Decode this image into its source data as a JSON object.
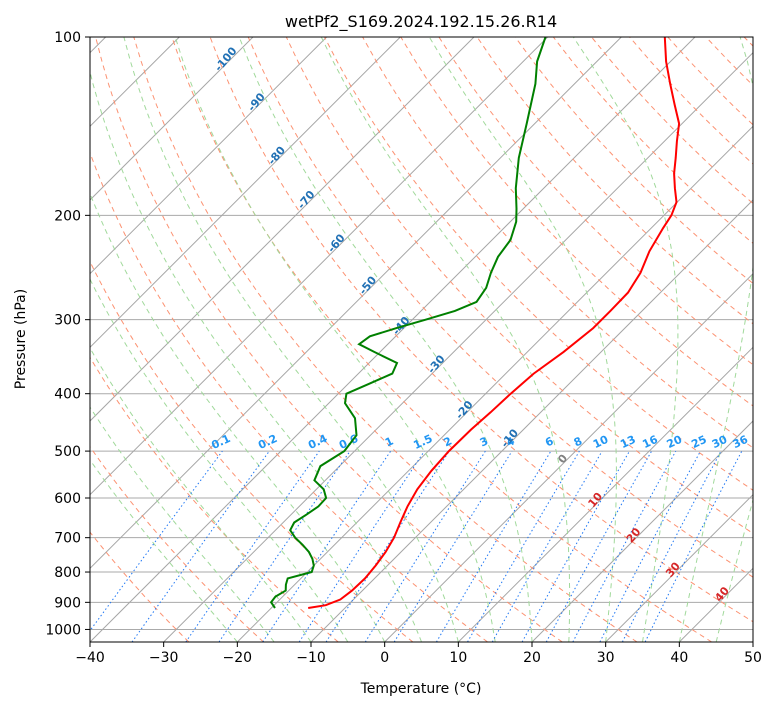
{
  "chart_data": {
    "type": "line",
    "title": "wetPf2_S169.2024.192.15.26.R14",
    "xlabel": "Temperature (°C)",
    "ylabel": "Pressure (hPa)",
    "xlim": [
      -40,
      50
    ],
    "ylim": [
      1050,
      100
    ],
    "y_scale": "log",
    "grid": true,
    "x_ticks": [
      "−40",
      "−30",
      "−20",
      "−10",
      "0",
      "10",
      "20",
      "30",
      "40",
      "50"
    ],
    "x_tick_values": [
      -40,
      -30,
      -20,
      -10,
      0,
      10,
      20,
      30,
      40,
      50
    ],
    "y_ticks": [
      "100",
      "200",
      "300",
      "400",
      "500",
      "600",
      "700",
      "800",
      "900",
      "1000"
    ],
    "y_tick_values": [
      100,
      200,
      300,
      400,
      500,
      600,
      700,
      800,
      900,
      1000
    ],
    "series": [
      {
        "color": "#ff0000",
        "points": [
          [
            920,
            -15
          ],
          [
            910,
            -13
          ],
          [
            890,
            -11.8
          ],
          [
            860,
            -11.4
          ],
          [
            820,
            -11.3
          ],
          [
            780,
            -11.6
          ],
          [
            740,
            -12.1
          ],
          [
            700,
            -12.9
          ],
          [
            660,
            -14.1
          ],
          [
            620,
            -15.3
          ],
          [
            580,
            -16.3
          ],
          [
            540,
            -16.9
          ],
          [
            500,
            -17.2
          ],
          [
            460,
            -17.1
          ],
          [
            430,
            -16.8
          ],
          [
            400,
            -16.6
          ],
          [
            370,
            -16.2
          ],
          [
            340,
            -15.1
          ],
          [
            310,
            -14.3
          ],
          [
            290,
            -14.3
          ],
          [
            270,
            -14.4
          ],
          [
            250,
            -15.4
          ],
          [
            230,
            -17.1
          ],
          [
            210,
            -18.4
          ],
          [
            200,
            -19.0
          ],
          [
            190,
            -20.1
          ],
          [
            180,
            -22.2
          ],
          [
            170,
            -24.3
          ],
          [
            160,
            -26.2
          ],
          [
            150,
            -28.3
          ],
          [
            140,
            -30.4
          ],
          [
            130,
            -33.6
          ],
          [
            120,
            -37.0
          ],
          [
            110,
            -40.6
          ],
          [
            100,
            -44.1
          ]
        ]
      },
      {
        "color": "#008000",
        "points": [
          [
            920,
            -19.5
          ],
          [
            900,
            -20.8
          ],
          [
            880,
            -21
          ],
          [
            860,
            -20.4
          ],
          [
            840,
            -21.2
          ],
          [
            820,
            -21.8
          ],
          [
            800,
            -19.4
          ],
          [
            780,
            -20
          ],
          [
            760,
            -21.1
          ],
          [
            740,
            -22.5
          ],
          [
            720,
            -24.3
          ],
          [
            700,
            -26.3
          ],
          [
            680,
            -28
          ],
          [
            660,
            -28.5
          ],
          [
            640,
            -27.9
          ],
          [
            620,
            -27.4
          ],
          [
            600,
            -27.5
          ],
          [
            580,
            -29
          ],
          [
            560,
            -31.5
          ],
          [
            530,
            -32.6
          ],
          [
            500,
            -31.4
          ],
          [
            470,
            -31.9
          ],
          [
            440,
            -34.4
          ],
          [
            415,
            -37.8
          ],
          [
            400,
            -38.9
          ],
          [
            385,
            -37.2
          ],
          [
            370,
            -35.4
          ],
          [
            355,
            -36.2
          ],
          [
            340,
            -40.8
          ],
          [
            330,
            -43.9
          ],
          [
            320,
            -43.5
          ],
          [
            310,
            -41
          ],
          [
            300,
            -38.2
          ],
          [
            290,
            -35.4
          ],
          [
            280,
            -33.7
          ],
          [
            265,
            -34.3
          ],
          [
            250,
            -35.7
          ],
          [
            235,
            -36.9
          ],
          [
            220,
            -37.5
          ],
          [
            205,
            -39.2
          ],
          [
            195,
            -40.9
          ],
          [
            180,
            -43.8
          ],
          [
            160,
            -47.5
          ],
          [
            140,
            -51.1
          ],
          [
            120,
            -55.3
          ],
          [
            110,
            -58.1
          ],
          [
            100,
            -60.3
          ]
        ]
      }
    ],
    "dry_adiabat_labels": [
      "-100",
      "-90",
      "-80",
      "-70",
      "-60",
      "-50",
      "-40",
      "-30",
      "-20",
      "-10",
      "0",
      "10",
      "20",
      "30",
      "40"
    ],
    "mixing_ratio_labels": [
      "0.1",
      "0.2",
      "0.4",
      "0.6",
      "1",
      "1.5",
      "2",
      "3",
      "4",
      "6",
      "8",
      "10",
      "13",
      "16",
      "20",
      "25",
      "30",
      "36"
    ],
    "colors": {
      "temperature": "#ff0000",
      "dewpoint": "#008000",
      "isotherm": "#a6a6a6",
      "isobar": "#aaaaaa",
      "dry_adiabat": "#fc9272",
      "moist_adiabat": "#a1d99b",
      "mixing_ratio": "#1f77f4",
      "dry_adiabat_label_cold": "#2171b5",
      "dry_adiabat_label_zero": "#808080",
      "dry_adiabat_label_warm": "#d62728",
      "mixing_label": "#2196f3"
    }
  }
}
